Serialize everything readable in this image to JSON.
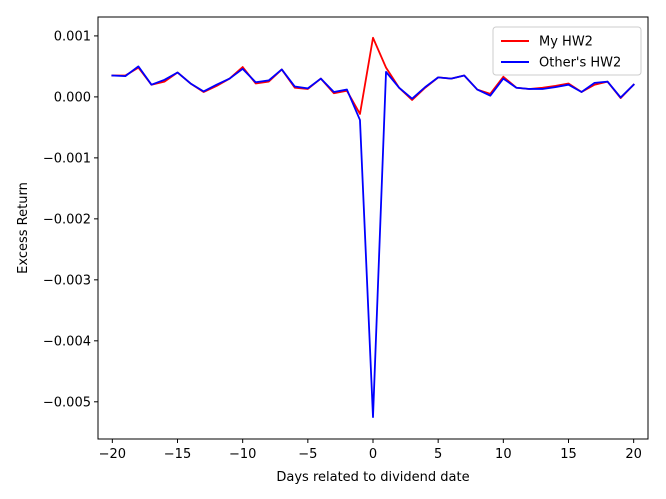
{
  "chart_data": {
    "type": "line",
    "xlabel": "Days related to dividend date",
    "ylabel": "Excess Return",
    "xlim": [
      -21.1,
      21.1
    ],
    "ylim": [
      -0.00561,
      0.00131
    ],
    "xticks": [
      -20,
      -15,
      -10,
      -5,
      0,
      5,
      10,
      15,
      20
    ],
    "xtick_labels": [
      "−20",
      "−15",
      "−10",
      "−5",
      "0",
      "5",
      "10",
      "15",
      "20"
    ],
    "yticks": [
      0.001,
      0.0,
      -0.001,
      -0.002,
      -0.003,
      -0.004,
      -0.005
    ],
    "ytick_labels": [
      "0.001",
      "0.000",
      "−0.001",
      "−0.002",
      "−0.003",
      "−0.004",
      "−0.005"
    ],
    "legend_position": "top-right",
    "x": [
      -20,
      -19,
      -18,
      -17,
      -16,
      -15,
      -14,
      -13,
      -12,
      -11,
      -10,
      -9,
      -8,
      -7,
      -6,
      -5,
      -4,
      -3,
      -2,
      -1,
      0,
      1,
      2,
      3,
      4,
      5,
      6,
      7,
      8,
      9,
      10,
      11,
      12,
      13,
      14,
      15,
      16,
      17,
      18,
      19,
      20
    ],
    "series": [
      {
        "name": "My HW2",
        "color": "#ff0000",
        "values": [
          0.00035,
          0.00035,
          0.00048,
          0.0002,
          0.00025,
          0.0004,
          0.00022,
          8e-05,
          0.00018,
          0.0003,
          0.00049,
          0.00022,
          0.00025,
          0.00045,
          0.00015,
          0.00013,
          0.0003,
          6e-05,
          0.0001,
          -0.00028,
          0.00097,
          0.00048,
          0.00015,
          -5e-05,
          0.00015,
          0.00032,
          0.0003,
          0.00035,
          0.00012,
          5e-05,
          0.00033,
          0.00015,
          0.00013,
          0.00015,
          0.00018,
          0.00022,
          8e-05,
          0.0002,
          0.00025,
          -2e-05,
          0.0002
        ]
      },
      {
        "name": "Other's HW2",
        "color": "#0000ff",
        "values": [
          0.00035,
          0.00034,
          0.0005,
          0.0002,
          0.00028,
          0.0004,
          0.00022,
          9e-05,
          0.0002,
          0.0003,
          0.00046,
          0.00024,
          0.00027,
          0.00045,
          0.00017,
          0.00014,
          0.0003,
          8e-05,
          0.00012,
          -0.00038,
          -0.00525,
          0.00041,
          0.00015,
          -3e-05,
          0.00016,
          0.00032,
          0.0003,
          0.00035,
          0.00012,
          2e-05,
          0.0003,
          0.00015,
          0.00013,
          0.00013,
          0.00016,
          0.0002,
          8e-05,
          0.00023,
          0.00025,
          -1e-05,
          0.0002
        ]
      }
    ]
  }
}
